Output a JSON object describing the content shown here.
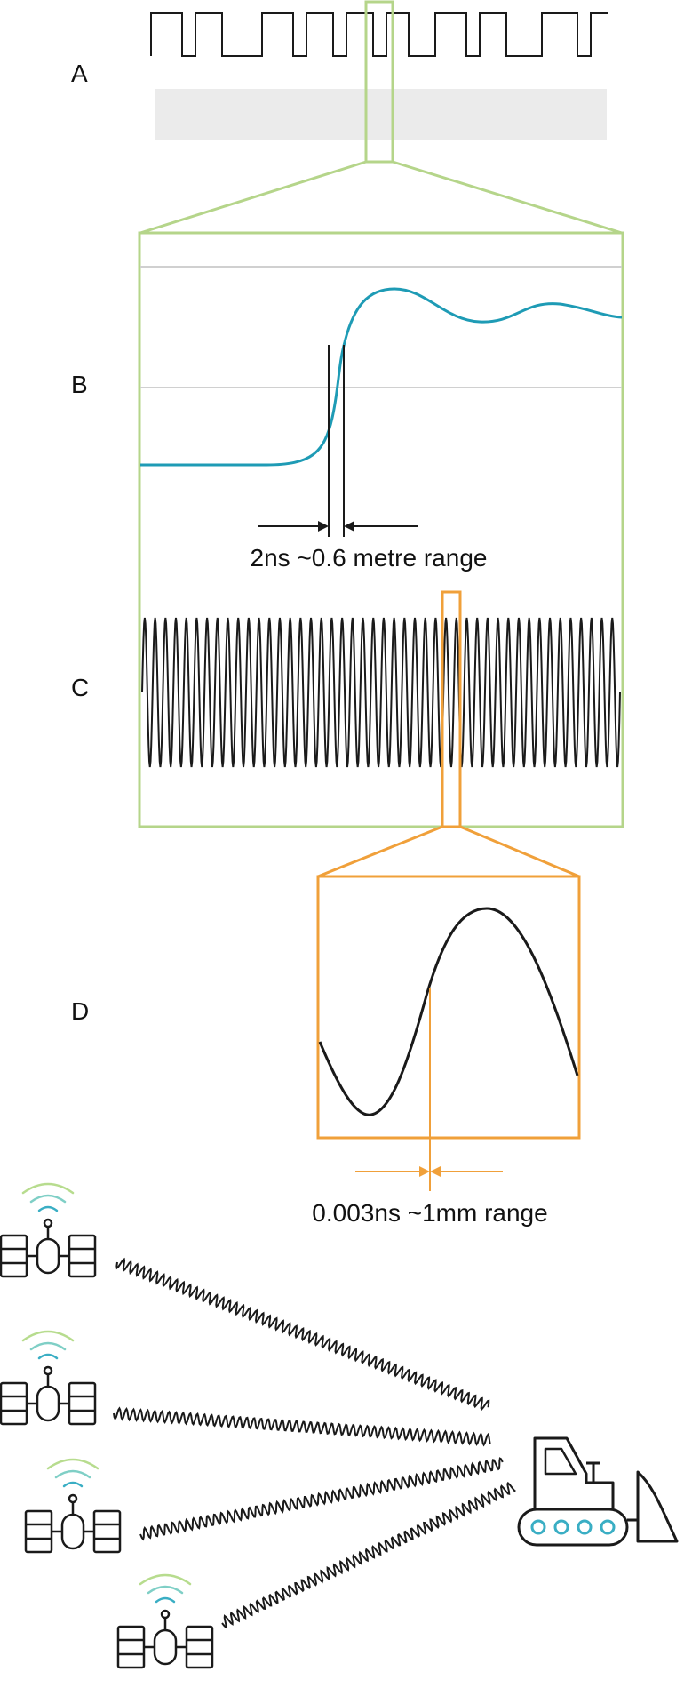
{
  "panels": {
    "a": {
      "label": "A"
    },
    "b": {
      "label": "B"
    },
    "c": {
      "label": "C"
    },
    "d": {
      "label": "D"
    }
  },
  "annotations": {
    "coarse_range": "2ns ~0.6 metre range",
    "fine_range": "0.003ns ~1mm range"
  },
  "colors": {
    "zoom_green": "#b5d58a",
    "zoom_orange": "#f0a03a",
    "rise_curve": "#1e9bb5",
    "ink": "#1a1a1a",
    "band_gray": "#ebebeb",
    "gridline": "#d0d0d0",
    "signal_waves": [
      "#b7dc8e",
      "#7fcfc6",
      "#3aaec4"
    ]
  },
  "icons": {
    "satellites": [
      "satellite-icon",
      "satellite-icon",
      "satellite-icon",
      "satellite-icon"
    ],
    "receiver": "bulldozer-icon"
  },
  "wave_c": {
    "cycles": 46
  }
}
